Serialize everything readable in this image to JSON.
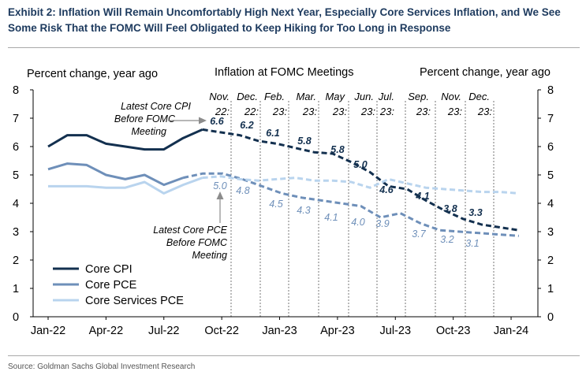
{
  "title": "Exhibit 2: Inflation Will Remain Uncomfortably High Next Year, Especially Core Services Inflation, and We See Some Risk That the FOMC Will Feel Obligated to Keep Hiking for Too Long in Response",
  "source": "Source: Goldman Sachs Global Investment Research",
  "chart_data": {
    "type": "line",
    "ylabel_left": "Percent change, year ago",
    "ylabel_right": "Percent change, year ago",
    "center_label": "Inflation at FOMC Meetings",
    "ylim": [
      0,
      8
    ],
    "yticks": [
      "0",
      "1",
      "2",
      "3",
      "4",
      "5",
      "6",
      "7",
      "8"
    ],
    "xticks": [
      "Jan-22",
      "Apr-22",
      "Jul-22",
      "Oct-22",
      "Jan-23",
      "Apr-23",
      "Jul-23",
      "Oct-23",
      "Jan-24"
    ],
    "colors": {
      "core_cpi": "#13304f",
      "core_pce": "#6e8fb9",
      "core_services_pce": "#b9d4ee",
      "text": "#000000",
      "annotation_arrow": "#8c8c8c"
    },
    "series": [
      {
        "name": "Core CPI",
        "key": "core_cpi",
        "actual": [
          6.0,
          6.4,
          6.4,
          6.1,
          6.0,
          5.9,
          5.9,
          6.3,
          6.6
        ],
        "forecast": [
          6.6,
          6.5,
          6.4,
          6.2,
          6.1,
          5.95,
          5.8,
          5.75,
          5.45,
          5.1,
          4.6,
          4.5,
          4.1,
          3.75,
          3.45,
          3.25,
          3.15,
          3.05
        ]
      },
      {
        "name": "Core PCE",
        "key": "core_pce",
        "actual": [
          5.2,
          5.4,
          5.35,
          5.0,
          4.85,
          5.0,
          4.65,
          4.9
        ],
        "forecast": [
          4.9,
          5.05,
          5.05,
          4.85,
          4.6,
          4.35,
          4.2,
          4.1,
          4.0,
          3.9,
          3.5,
          3.65,
          3.3,
          3.05,
          3.0,
          2.95,
          2.9,
          2.85
        ]
      },
      {
        "name": "Core Services PCE",
        "key": "core_services_pce",
        "actual": [
          4.6,
          4.6,
          4.6,
          4.55,
          4.55,
          4.75,
          4.35,
          4.65,
          4.9
        ],
        "forecast": [
          4.9,
          4.95,
          4.85,
          4.8,
          4.85,
          4.9,
          4.8,
          4.8,
          4.75,
          4.55,
          4.85,
          4.7,
          4.55,
          4.5,
          4.45,
          4.4,
          4.4,
          4.35
        ]
      }
    ],
    "fomc_meetings": [
      {
        "line1": "Nov.",
        "line2": "22:",
        "core_cpi": "6.6",
        "core_pce": "5.0"
      },
      {
        "line1": "Dec.",
        "line2": "22:",
        "core_cpi": "6.2",
        "core_pce": "4.8"
      },
      {
        "line1": "Feb.",
        "line2": "23:",
        "core_cpi": "6.1",
        "core_pce": "4.5"
      },
      {
        "line1": "Mar.",
        "line2": "23:",
        "core_cpi": "5.8",
        "core_pce": "4.3"
      },
      {
        "line1": "May",
        "line2": "23:",
        "core_cpi": "5.8",
        "core_pce": "4.1"
      },
      {
        "line1": "Jun.",
        "line2": "23:",
        "core_cpi": "5.0",
        "core_pce": "4.0"
      },
      {
        "line1": "Jul.",
        "line2": "23:",
        "core_cpi": "4.6",
        "core_pce": "3.9"
      },
      {
        "line1": "Sep.",
        "line2": "23:",
        "core_cpi": "4.1",
        "core_pce": "3.7"
      },
      {
        "line1": "Nov.",
        "line2": "23:",
        "core_cpi": "3.8",
        "core_pce": "3.2"
      },
      {
        "line1": "Dec.",
        "line2": "23:",
        "core_cpi": "3.3",
        "core_pce": "3.1"
      }
    ],
    "annotations": [
      {
        "key": "cpi",
        "lines": [
          "Latest Core CPI",
          "Before FOMC",
          "Meeting"
        ]
      },
      {
        "key": "pce",
        "lines": [
          "Latest Core PCE",
          "Before FOMC",
          "Meeting"
        ]
      }
    ],
    "legend": [
      "Core CPI",
      "Core PCE",
      "Core Services PCE"
    ]
  }
}
